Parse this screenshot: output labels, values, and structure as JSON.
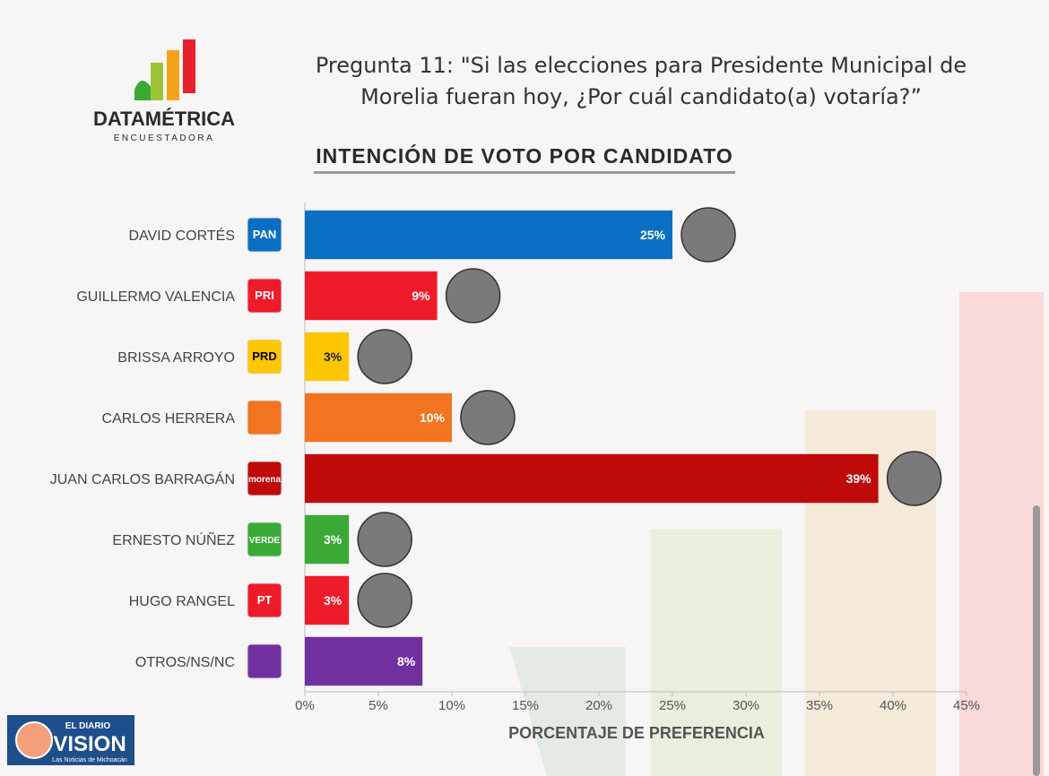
{
  "brand": {
    "name": "DATAMÉTRICA",
    "tagline": "ENCUESTADORA"
  },
  "watermark": {
    "top": "EL DIARIO",
    "name": "VISION",
    "tagline": "Las Noticias de Michoacán"
  },
  "chart_data": {
    "type": "hbar",
    "title": "Pregunta 11: \"Si las elecciones para Presidente Municipal de Morelia fueran hoy, ¿Por cuál candidato(a) votaría?”",
    "subtitle": "INTENCIÓN DE VOTO POR CANDIDATO",
    "x_label": "PORCENTAJE DE PREFERENCIA",
    "categories": [
      "DAVID CORTÉS",
      "GUILLERMO VALENCIA",
      "BRISSA ARROYO",
      "CARLOS HERRERA",
      "JUAN CARLOS BARRAGÁN",
      "ERNESTO NÚÑEZ",
      "HUGO RANGEL",
      "OTROS/NS/NC"
    ],
    "party_labels": [
      "PAN",
      "PRI",
      "PRD",
      null,
      "morena",
      "VERDE",
      "PT",
      null
    ],
    "values": [
      25,
      9,
      3,
      10,
      39,
      3,
      3,
      8
    ],
    "value_labels": [
      "25%",
      "9%",
      "3%",
      "10%",
      "39%",
      "3%",
      "3%",
      "8%"
    ],
    "colors": [
      "#0a6fc2",
      "#ee1c2b",
      "#fdc600",
      "#f27420",
      "#c00a0a",
      "#3aa935",
      "#ee1c2b",
      "#7030a0"
    ],
    "xlim": [
      0,
      45
    ],
    "xticks": [
      {
        "value": 0,
        "label": "0%"
      },
      {
        "value": 5,
        "label": "5%"
      },
      {
        "value": 10,
        "label": "10%"
      },
      {
        "value": 15,
        "label": "15%"
      },
      {
        "value": 20,
        "label": "20%"
      },
      {
        "value": 25,
        "label": "25%"
      },
      {
        "value": 30,
        "label": "30%"
      },
      {
        "value": 35,
        "label": "35%"
      },
      {
        "value": 40,
        "label": "40%"
      },
      {
        "value": 45,
        "label": "45%"
      }
    ]
  }
}
